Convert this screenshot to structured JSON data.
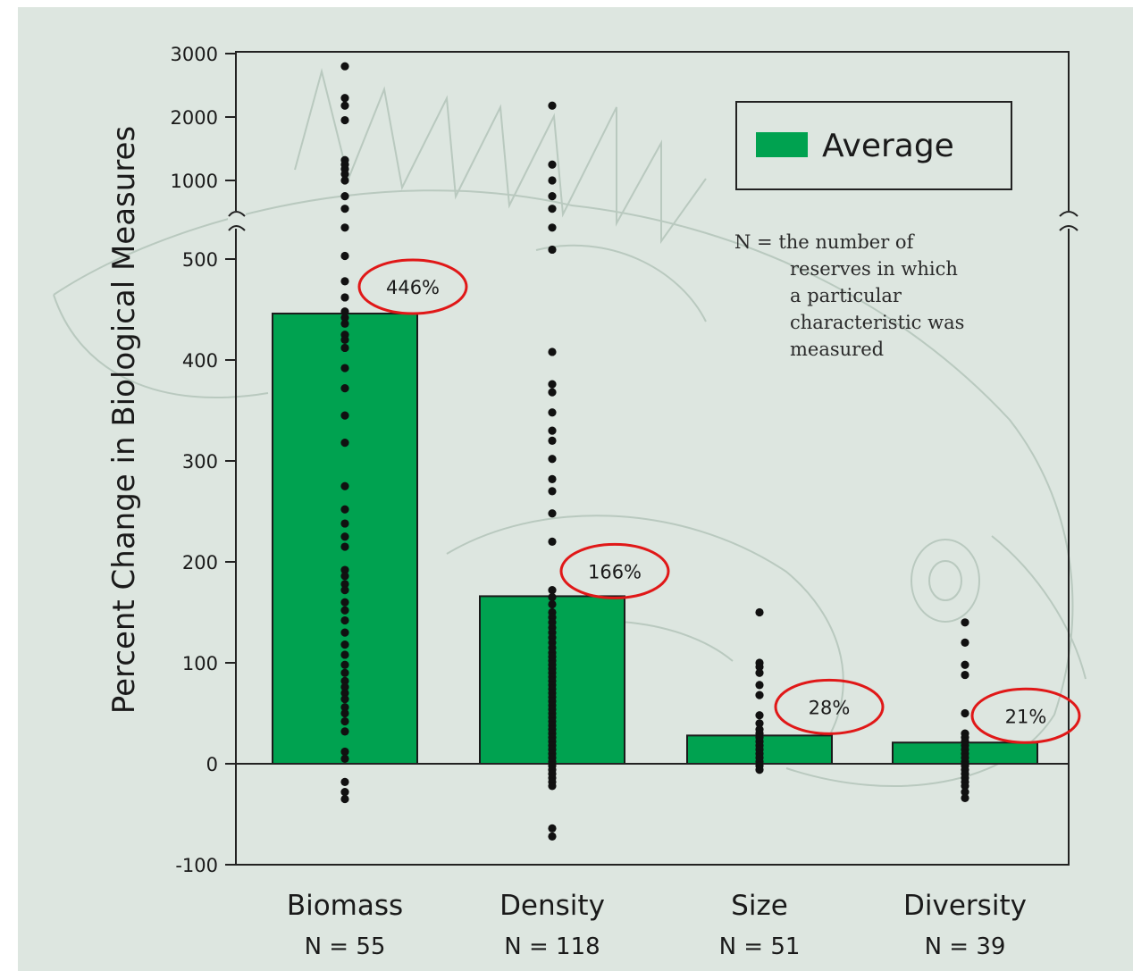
{
  "chart_data": {
    "type": "bar",
    "ylabel": "Percent Change in Biological Measures",
    "categories": [
      "Biomass",
      "Density",
      "Size",
      "Diversity"
    ],
    "n_labels": [
      "N = 55",
      "N = 118",
      "N = 51",
      "N = 39"
    ],
    "series": [
      {
        "name": "Average",
        "values": [
          446,
          166,
          28,
          21
        ]
      }
    ],
    "value_labels": [
      "446%",
      "166%",
      "28%",
      "21%"
    ],
    "lower_ticks": [
      "-100",
      "0",
      "100",
      "200",
      "300",
      "400",
      "500"
    ],
    "lower_tick_values": [
      -100,
      0,
      100,
      200,
      300,
      400,
      500
    ],
    "upper_ticks": [
      "1000",
      "2000",
      "3000"
    ],
    "upper_tick_values": [
      1000,
      2000,
      3000
    ],
    "ylim": [
      -100,
      3000
    ],
    "axis_break": [
      500,
      1000
    ],
    "legend_position": "top-right",
    "note_lines": [
      "N = the number of",
      "reserves in which",
      "a particular",
      "characteristic was",
      "measured"
    ],
    "points": [
      [
        2800,
        2300,
        2180,
        1950,
        1320,
        1250,
        1180,
        1100,
        1000,
        900,
        820,
        700,
        520,
        478,
        462,
        448,
        442,
        436,
        425,
        420,
        412,
        392,
        372,
        345,
        318,
        275,
        252,
        238,
        225,
        215,
        192,
        186,
        178,
        172,
        160,
        152,
        142,
        130,
        118,
        108,
        98,
        90,
        82,
        76,
        70,
        64,
        56,
        50,
        42,
        32,
        12,
        5,
        -18,
        -28,
        -35
      ],
      [
        2180,
        1250,
        1000,
        900,
        820,
        700,
        560,
        408,
        376,
        368,
        348,
        330,
        320,
        302,
        282,
        270,
        248,
        220,
        172,
        165,
        158,
        150,
        145,
        140,
        135,
        130,
        125,
        120,
        115,
        110,
        106,
        102,
        98,
        94,
        90,
        86,
        82,
        78,
        74,
        70,
        66,
        62,
        58,
        54,
        50,
        46,
        42,
        38,
        34,
        30,
        26,
        22,
        18,
        14,
        10,
        6,
        2,
        -2,
        -6,
        -10,
        -14,
        -18,
        -22,
        -64,
        -72
      ],
      [
        150,
        100,
        96,
        90,
        78,
        68,
        48,
        40,
        34,
        30,
        26,
        22,
        18,
        14,
        10,
        6,
        2,
        -2,
        -6
      ],
      [
        140,
        120,
        98,
        88,
        50,
        30,
        26,
        22,
        18,
        14,
        10,
        6,
        2,
        -2,
        -6,
        -10,
        -14,
        -18,
        -22,
        -28,
        -34
      ]
    ]
  }
}
